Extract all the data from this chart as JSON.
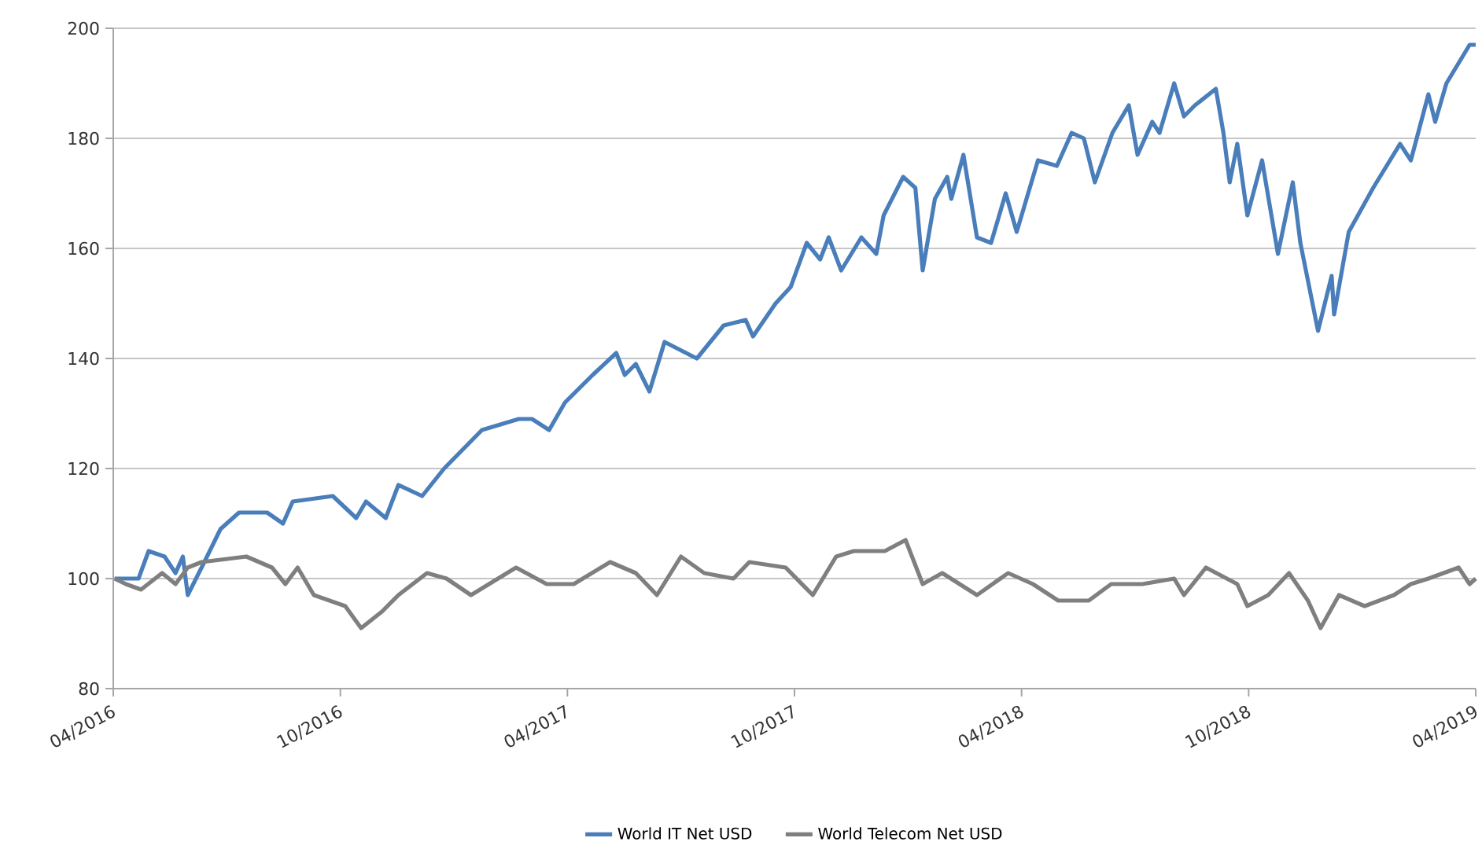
{
  "chart_data": {
    "type": "line",
    "xlim": [
      "2016-04",
      "2019-04"
    ],
    "xticks": [
      {
        "value": "2016-04",
        "label": "04/2016"
      },
      {
        "value": "2016-10",
        "label": "10/2016"
      },
      {
        "value": "2017-04",
        "label": "04/2017"
      },
      {
        "value": "2017-10",
        "label": "10/2017"
      },
      {
        "value": "2018-04",
        "label": "04/2018"
      },
      {
        "value": "2018-10",
        "label": "10/2018"
      },
      {
        "value": "2019-04",
        "label": "04/2019"
      }
    ],
    "ylim": [
      80,
      200
    ],
    "yticks": [
      80,
      100,
      120,
      140,
      160,
      180,
      200
    ],
    "grid": "y",
    "legend": "bottom",
    "marker": "none",
    "line_style": "solid",
    "series": [
      {
        "name": "World IT Net USD",
        "color": "#4a7ebb",
        "x": [
          "2016-04-02",
          "2016-04-21",
          "2016-04-29",
          "2016-05-12",
          "2016-05-21",
          "2016-05-27",
          "2016-05-31",
          "2016-06-11",
          "2016-06-26",
          "2016-07-11",
          "2016-08-03",
          "2016-08-16",
          "2016-08-24",
          "2016-09-25",
          "2016-10-14",
          "2016-10-22",
          "2016-11-07",
          "2016-11-17",
          "2016-12-06",
          "2016-12-24",
          "2017-01-24",
          "2017-02-21",
          "2017-03-03",
          "2017-03-17",
          "2017-03-30",
          "2017-04-21",
          "2017-05-10",
          "2017-05-17",
          "2017-05-26",
          "2017-06-06",
          "2017-06-18",
          "2017-07-14",
          "2017-08-05",
          "2017-08-23",
          "2017-08-29",
          "2017-09-16",
          "2017-09-28",
          "2017-10-11",
          "2017-10-22",
          "2017-10-29",
          "2017-11-08",
          "2017-11-24",
          "2017-12-06",
          "2017-12-12",
          "2017-12-28",
          "2018-01-07",
          "2018-01-13",
          "2018-01-23",
          "2018-02-02",
          "2018-02-05",
          "2018-02-14",
          "2018-02-24",
          "2018-03-07",
          "2018-03-19",
          "2018-03-28",
          "2018-04-14",
          "2018-04-29",
          "2018-05-11",
          "2018-05-21",
          "2018-05-30",
          "2018-06-13",
          "2018-06-26",
          "2018-07-03",
          "2018-07-15",
          "2018-07-21",
          "2018-08-02",
          "2018-08-10",
          "2018-08-19",
          "2018-09-05",
          "2018-09-11",
          "2018-09-16",
          "2018-09-22",
          "2018-09-30",
          "2018-10-12",
          "2018-10-25",
          "2018-11-06",
          "2018-11-12",
          "2018-11-26",
          "2018-12-07",
          "2018-12-09",
          "2018-12-21",
          "2019-01-10",
          "2019-02-01",
          "2019-02-09",
          "2019-02-22",
          "2019-02-27",
          "2019-03-08",
          "2019-03-27",
          "2019-04-01"
        ],
        "values": [
          100,
          100,
          105,
          104,
          101,
          104,
          97,
          102,
          109,
          112,
          112,
          110,
          114,
          115,
          111,
          114,
          111,
          117,
          115,
          120,
          127,
          129,
          129,
          127,
          132,
          137,
          141,
          137,
          139,
          134,
          143,
          140,
          146,
          147,
          144,
          150,
          153,
          161,
          158,
          162,
          156,
          162,
          159,
          166,
          173,
          171,
          156,
          169,
          173,
          169,
          177,
          162,
          161,
          170,
          163,
          176,
          175,
          181,
          180,
          172,
          181,
          186,
          177,
          183,
          181,
          190,
          184,
          186,
          189,
          181,
          172,
          179,
          166,
          176,
          159,
          172,
          161,
          145,
          155,
          148,
          163,
          171,
          179,
          176,
          188,
          183,
          190,
          197,
          197
        ]
      },
      {
        "name": "World Telecom Net USD",
        "color": "#7f7f7f",
        "x": [
          "2016-04-02",
          "2016-04-11",
          "2016-04-23",
          "2016-05-10",
          "2016-05-21",
          "2016-05-31",
          "2016-06-11",
          "2016-07-17",
          "2016-08-07",
          "2016-08-18",
          "2016-08-28",
          "2016-09-10",
          "2016-10-05",
          "2016-10-18",
          "2016-11-04",
          "2016-11-17",
          "2016-12-10",
          "2016-12-26",
          "2017-01-15",
          "2017-02-19",
          "2017-03-15",
          "2017-04-06",
          "2017-05-05",
          "2017-05-26",
          "2017-06-12",
          "2017-07-01",
          "2017-07-20",
          "2017-08-13",
          "2017-08-26",
          "2017-09-24",
          "2017-10-16",
          "2017-11-04",
          "2017-11-18",
          "2017-12-13",
          "2017-12-30",
          "2018-01-13",
          "2018-01-29",
          "2018-02-24",
          "2018-03-21",
          "2018-04-10",
          "2018-04-30",
          "2018-05-25",
          "2018-06-12",
          "2018-07-07",
          "2018-08-02",
          "2018-08-10",
          "2018-08-28",
          "2018-09-22",
          "2018-09-30",
          "2018-10-17",
          "2018-11-03",
          "2018-11-18",
          "2018-11-28",
          "2018-12-13",
          "2019-01-03",
          "2019-01-27",
          "2019-02-09",
          "2019-02-22",
          "2019-03-18",
          "2019-03-27",
          "2019-04-01"
        ],
        "values": [
          100,
          99,
          98,
          101,
          99,
          102,
          103,
          104,
          102,
          99,
          102,
          97,
          95,
          91,
          94,
          97,
          101,
          100,
          97,
          102,
          99,
          99,
          103,
          101,
          97,
          104,
          101,
          100,
          103,
          102,
          97,
          104,
          105,
          105,
          107,
          99,
          101,
          97,
          101,
          99,
          96,
          96,
          99,
          99,
          100,
          97,
          102,
          99,
          95,
          97,
          101,
          96,
          91,
          97,
          95,
          97,
          99,
          100,
          102,
          99,
          100
        ]
      }
    ]
  }
}
